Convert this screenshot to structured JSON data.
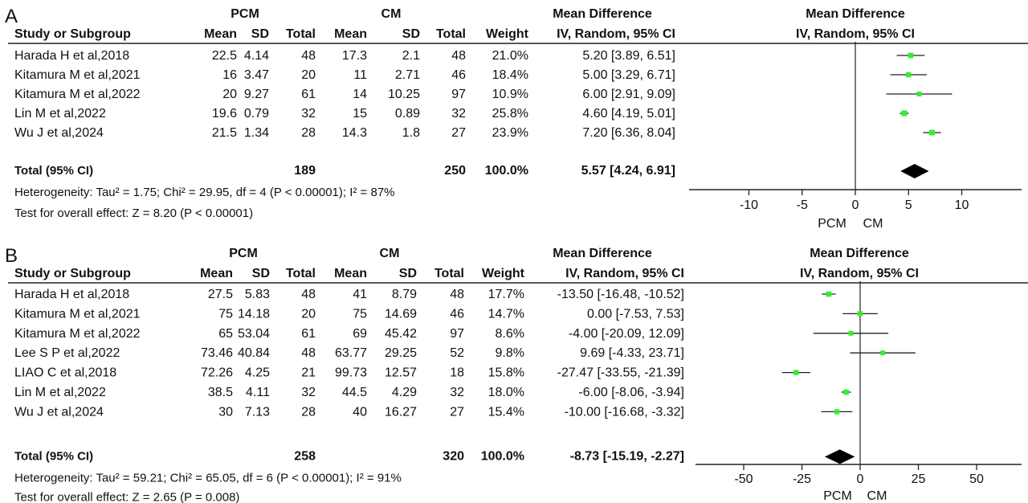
{
  "panels": [
    {
      "letter": "A",
      "group1_label": "PCM",
      "group2_label": "CM",
      "effect_header": "Mean Difference",
      "plot_header": "Mean Difference",
      "method_header": "IV, Random, 95% CI",
      "plot_method_header": "IV, Random, 95% CI",
      "col_headers": [
        "Study or Subgroup",
        "Mean",
        "SD",
        "Total",
        "Mean",
        "SD",
        "Total",
        "Weight",
        "IV, Random, 95% CI"
      ],
      "studies": [
        {
          "name": "Harada H et al,2018",
          "m1": "22.5",
          "sd1": "4.14",
          "n1": "48",
          "m2": "17.3",
          "sd2": "2.1",
          "n2": "48",
          "weight": "21.0%",
          "ci_text": "5.20 [3.89, 6.51]"
        },
        {
          "name": "Kitamura M et al,2021",
          "m1": "16",
          "sd1": "3.47",
          "n1": "20",
          "m2": "11",
          "sd2": "2.71",
          "n2": "46",
          "weight": "18.4%",
          "ci_text": "5.00 [3.29, 6.71]"
        },
        {
          "name": "Kitamura M et al,2022",
          "m1": "20",
          "sd1": "9.27",
          "n1": "61",
          "m2": "14",
          "sd2": "10.25",
          "n2": "97",
          "weight": "10.9%",
          "ci_text": "6.00 [2.91, 9.09]"
        },
        {
          "name": "Lin M et al,2022",
          "m1": "19.6",
          "sd1": "0.79",
          "n1": "32",
          "m2": "15",
          "sd2": "0.89",
          "n2": "32",
          "weight": "25.8%",
          "ci_text": "4.60 [4.19, 5.01]"
        },
        {
          "name": "Wu J et al,2024",
          "m1": "21.5",
          "sd1": "1.34",
          "n1": "28",
          "m2": "14.3",
          "sd2": "1.8",
          "n2": "27",
          "weight": "23.9%",
          "ci_text": "7.20 [6.36, 8.04]"
        }
      ],
      "total": {
        "label": "Total (95% CI)",
        "n1": "189",
        "n2": "250",
        "weight": "100.0%",
        "ci_text": "5.57 [4.24, 6.91]"
      },
      "heterogeneity": "Heterogeneity: Tau² = 1.75; Chi² = 29.95, df = 4 (P < 0.00001); I² = 87%",
      "overall": "Test for overall effect: Z = 8.20 (P < 0.00001)",
      "tick_labels": [
        "-10",
        "-5",
        "0",
        "5",
        "10"
      ],
      "favours_left": "PCM",
      "favours_right": "CM"
    },
    {
      "letter": "B",
      "group1_label": "PCM",
      "group2_label": "CM",
      "effect_header": "Mean Difference",
      "plot_header": "Mean Difference",
      "method_header": "IV, Random, 95% CI",
      "plot_method_header": "IV, Random, 95% CI",
      "col_headers": [
        "Study or Subgroup",
        "Mean",
        "SD",
        "Total",
        "Mean",
        "SD",
        "Total",
        "Weight",
        "IV, Random, 95% CI"
      ],
      "studies": [
        {
          "name": "Harada H et al,2018",
          "m1": "27.5",
          "sd1": "5.83",
          "n1": "48",
          "m2": "41",
          "sd2": "8.79",
          "n2": "48",
          "weight": "17.7%",
          "ci_text": "-13.50 [-16.48, -10.52]"
        },
        {
          "name": "Kitamura M et al,2021",
          "m1": "75",
          "sd1": "14.18",
          "n1": "20",
          "m2": "75",
          "sd2": "14.69",
          "n2": "46",
          "weight": "14.7%",
          "ci_text": "0.00 [-7.53, 7.53]"
        },
        {
          "name": "Kitamura M et al,2022",
          "m1": "65",
          "sd1": "53.04",
          "n1": "61",
          "m2": "69",
          "sd2": "45.42",
          "n2": "97",
          "weight": "8.6%",
          "ci_text": "-4.00 [-20.09, 12.09]"
        },
        {
          "name": "Lee S P et al,2022",
          "m1": "73.46",
          "sd1": "40.84",
          "n1": "48",
          "m2": "63.77",
          "sd2": "29.25",
          "n2": "52",
          "weight": "9.8%",
          "ci_text": "9.69 [-4.33, 23.71]"
        },
        {
          "name": "LIAO C et al,2018",
          "m1": "72.26",
          "sd1": "4.25",
          "n1": "21",
          "m2": "99.73",
          "sd2": "12.57",
          "n2": "18",
          "weight": "15.8%",
          "ci_text": "-27.47 [-33.55, -21.39]"
        },
        {
          "name": "Lin M et al,2022",
          "m1": "38.5",
          "sd1": "4.11",
          "n1": "32",
          "m2": "44.5",
          "sd2": "4.29",
          "n2": "32",
          "weight": "18.0%",
          "ci_text": "-6.00 [-8.06, -3.94]"
        },
        {
          "name": "Wu J et al,2024",
          "m1": "30",
          "sd1": "7.13",
          "n1": "28",
          "m2": "40",
          "sd2": "16.27",
          "n2": "27",
          "weight": "15.4%",
          "ci_text": "-10.00 [-16.68, -3.32]"
        }
      ],
      "total": {
        "label": "Total (95% CI)",
        "n1": "258",
        "n2": "320",
        "weight": "100.0%",
        "ci_text": "-8.73 [-15.19, -2.27]"
      },
      "heterogeneity": "Heterogeneity: Tau² = 59.21; Chi² = 65.05, df = 6 (P < 0.00001); I² = 91%",
      "overall": "Test for overall effect: Z = 2.65 (P = 0.008)",
      "tick_labels": [
        "-50",
        "-25",
        "0",
        "25",
        "50"
      ],
      "favours_left": "PCM",
      "favours_right": "CM"
    }
  ],
  "colors": {
    "square": "#33ee33",
    "diamond": "#000000",
    "line": "#222222"
  },
  "chart_data": [
    {
      "type": "forest",
      "xlim": [
        -15,
        15
      ],
      "ticks": [
        -10,
        -5,
        0,
        5,
        10
      ],
      "series": [
        {
          "name": "Harada H et al,2018",
          "md": 5.2,
          "lo": 3.89,
          "hi": 6.51,
          "weight": 21.0
        },
        {
          "name": "Kitamura M et al,2021",
          "md": 5.0,
          "lo": 3.29,
          "hi": 6.71,
          "weight": 18.4
        },
        {
          "name": "Kitamura M et al,2022",
          "md": 6.0,
          "lo": 2.91,
          "hi": 9.09,
          "weight": 10.9
        },
        {
          "name": "Lin M et al,2022",
          "md": 4.6,
          "lo": 4.19,
          "hi": 5.01,
          "weight": 25.8
        },
        {
          "name": "Wu J et al,2024",
          "md": 7.2,
          "lo": 6.36,
          "hi": 8.04,
          "weight": 23.9
        }
      ],
      "pooled": {
        "md": 5.57,
        "lo": 4.24,
        "hi": 6.91
      }
    },
    {
      "type": "forest",
      "xlim": [
        -75,
        75
      ],
      "ticks": [
        -50,
        -25,
        0,
        25,
        50
      ],
      "series": [
        {
          "name": "Harada H et al,2018",
          "md": -13.5,
          "lo": -16.48,
          "hi": -10.52,
          "weight": 17.7
        },
        {
          "name": "Kitamura M et al,2021",
          "md": 0.0,
          "lo": -7.53,
          "hi": 7.53,
          "weight": 14.7
        },
        {
          "name": "Kitamura M et al,2022",
          "md": -4.0,
          "lo": -20.09,
          "hi": 12.09,
          "weight": 8.6
        },
        {
          "name": "Lee S P et al,2022",
          "md": 9.69,
          "lo": -4.33,
          "hi": 23.71,
          "weight": 9.8
        },
        {
          "name": "LIAO C et al,2018",
          "md": -27.47,
          "lo": -33.55,
          "hi": -21.39,
          "weight": 15.8
        },
        {
          "name": "Lin M et al,2022",
          "md": -6.0,
          "lo": -8.06,
          "hi": -3.94,
          "weight": 18.0
        },
        {
          "name": "Wu J et al,2024",
          "md": -10.0,
          "lo": -16.68,
          "hi": -3.32,
          "weight": 15.4
        }
      ],
      "pooled": {
        "md": -8.73,
        "lo": -15.19,
        "hi": -2.27
      }
    }
  ]
}
